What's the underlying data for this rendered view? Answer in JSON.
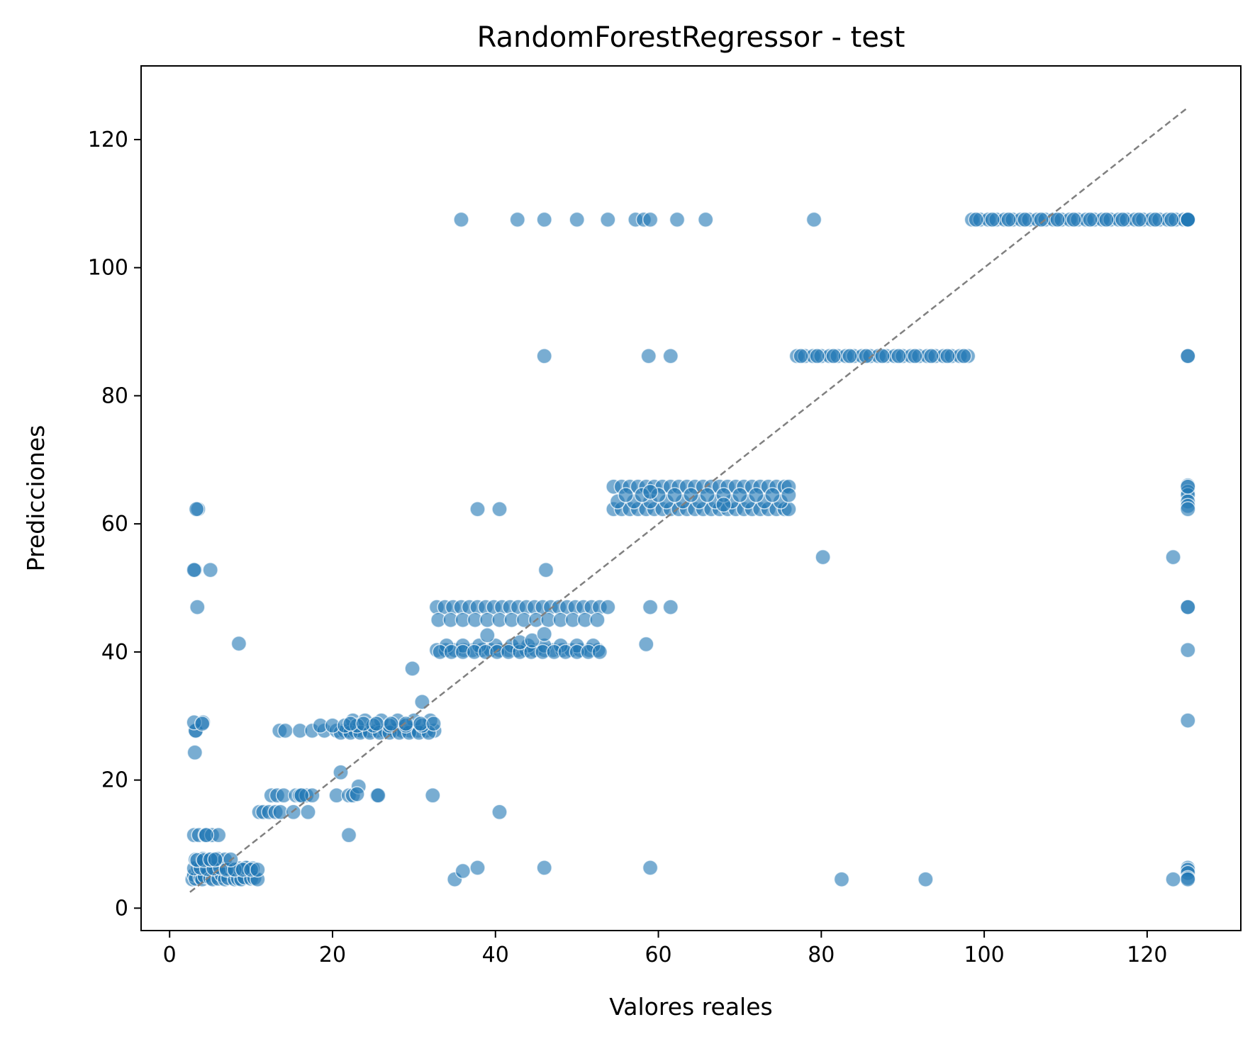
{
  "chart_data": {
    "type": "scatter",
    "title": "RandomForestRegressor - test",
    "xlabel": "Valores reales",
    "ylabel": "Predicciones",
    "xlim": [
      -3.5,
      131.5
    ],
    "ylim": [
      -3.5,
      131.5
    ],
    "xticks": [
      0,
      20,
      40,
      60,
      80,
      100,
      120
    ],
    "yticks": [
      0,
      20,
      40,
      60,
      80,
      100,
      120
    ],
    "grid": false,
    "colors": {
      "points": "#1f77b4",
      "reference_line": "#808080"
    },
    "reference_line": {
      "x": [
        2.5,
        125
      ],
      "y": [
        2.5,
        125
      ],
      "style": "dashed"
    },
    "series": [
      {
        "x": [
          2.8,
          3.0,
          3.2,
          3.5,
          3.8,
          4.0,
          4.3,
          4.6,
          5.0,
          5.3,
          5.7,
          6.0,
          6.4,
          6.8,
          7.2,
          7.6,
          8.0,
          8.4,
          8.8,
          9.2,
          9.6,
          10.0,
          10.4,
          10.8,
          3.0,
          3.8,
          4.6,
          5.4,
          6.2,
          7.0,
          7.8,
          8.6,
          9.4,
          10.2,
          3.2,
          4.1,
          5.0,
          5.9,
          6.8,
          3.0,
          3.6,
          4.4,
          5.2,
          6.0,
          7.0,
          8.0,
          9.0,
          10.0,
          10.8,
          3.4,
          4.2,
          5.0,
          5.6,
          3.1,
          4.5,
          7.5,
          3.2,
          5.0,
          3.1,
          3.5,
          3.4,
          3.2,
          4.1,
          3.0,
          8.5,
          11.0,
          11.5,
          12.2,
          13.0,
          12.5,
          13.2,
          14.0,
          13.6,
          15.5,
          16.0,
          16.8,
          17.5,
          15.2,
          17.0,
          16.2,
          20.5,
          22.0,
          22.5,
          23.2,
          23.0,
          25.5,
          25.6,
          22.0,
          21.0,
          32.3,
          40.5,
          13.5,
          14.2,
          16.0,
          17.5,
          19.0,
          20.5,
          21.5,
          22.0,
          22.8,
          23.5,
          24.5,
          25.5,
          26.5,
          27.5,
          28.5,
          29.5,
          30.5,
          31.5,
          32.5,
          22.5,
          24.0,
          26.0,
          28.0,
          30.0,
          32.0,
          21.0,
          22.2,
          23.4,
          24.6,
          25.8,
          27.0,
          28.2,
          29.4,
          30.6,
          31.8,
          18.5,
          20.0,
          21.5,
          23.0,
          25.0,
          27.0,
          29.0,
          31.0,
          22.2,
          23.8,
          25.4,
          27.2,
          29.0,
          30.8,
          32.4,
          3.0,
          4.0,
          31.0,
          29.8,
          32.8,
          33.8,
          34.8,
          35.8,
          36.8,
          37.8,
          38.8,
          39.8,
          40.8,
          41.8,
          42.8,
          43.8,
          44.8,
          45.8,
          46.8,
          47.8,
          48.8,
          49.8,
          50.8,
          51.8,
          52.8,
          53.8,
          33.0,
          34.5,
          36.0,
          37.5,
          39.0,
          40.5,
          42.0,
          43.5,
          45.0,
          46.5,
          48.0,
          49.5,
          51.0,
          52.5,
          32.8,
          33.9,
          35.0,
          36.1,
          37.2,
          38.3,
          39.4,
          40.5,
          41.6,
          42.7,
          43.8,
          44.9,
          46.0,
          47.1,
          48.2,
          49.3,
          50.4,
          51.5,
          52.6,
          34.0,
          36.0,
          38.0,
          40.0,
          42.0,
          44.0,
          46.0,
          48.0,
          50.0,
          52.0,
          33.2,
          34.6,
          36.0,
          37.4,
          38.8,
          40.2,
          41.6,
          43.0,
          44.4,
          45.8,
          47.2,
          48.6,
          50.0,
          51.4,
          52.8,
          39.0,
          43.0,
          44.5,
          46.0,
          58.5,
          59.0,
          61.5,
          54.5,
          55.5,
          56.5,
          57.5,
          58.5,
          59.5,
          60.5,
          61.5,
          62.5,
          63.5,
          64.5,
          65.5,
          66.5,
          67.5,
          68.5,
          69.5,
          70.5,
          71.5,
          72.5,
          73.5,
          74.5,
          75.5,
          76.0,
          54.5,
          55.5,
          56.5,
          57.5,
          58.5,
          59.5,
          60.5,
          61.5,
          62.5,
          63.5,
          64.5,
          65.5,
          66.5,
          67.5,
          68.5,
          69.5,
          70.5,
          71.5,
          72.5,
          73.5,
          74.5,
          75.5,
          76.0,
          55.0,
          57.0,
          59.0,
          61.0,
          63.0,
          65.0,
          67.0,
          69.0,
          71.0,
          73.0,
          75.0,
          56.0,
          58.0,
          60.0,
          62.0,
          64.0,
          66.0,
          68.0,
          70.0,
          72.0,
          74.0,
          76.0,
          59.0,
          68.0,
          3.3,
          37.8,
          40.5,
          77.0,
          78.0,
          79.0,
          80.0,
          81.0,
          82.0,
          83.0,
          84.0,
          85.0,
          86.0,
          87.0,
          88.0,
          89.0,
          90.0,
          91.0,
          92.0,
          93.0,
          94.0,
          95.0,
          96.0,
          97.0,
          98.0,
          77.5,
          79.5,
          81.5,
          83.5,
          85.5,
          87.5,
          89.5,
          91.5,
          93.5,
          95.5,
          97.5,
          46.0,
          58.8,
          61.5,
          98.5,
          99.5,
          100.5,
          101.5,
          102.5,
          103.5,
          104.5,
          105.5,
          106.5,
          107.5,
          108.5,
          109.5,
          110.5,
          111.5,
          112.5,
          113.5,
          114.5,
          115.5,
          116.5,
          117.5,
          118.5,
          119.5,
          120.5,
          121.5,
          122.5,
          123.5,
          124.5,
          125.0,
          99.0,
          101.0,
          103.0,
          105.0,
          107.0,
          109.0,
          111.0,
          113.0,
          115.0,
          117.0,
          119.0,
          121.0,
          123.0,
          125.0,
          35.8,
          42.7,
          46.0,
          50.0,
          53.8,
          57.2,
          58.2,
          59.0,
          62.3,
          65.8,
          79.1,
          125.0,
          125.0,
          125.0,
          125.0,
          125.0,
          125.0,
          125.0,
          125.0,
          125.0,
          125.0,
          125.0,
          125.0,
          125.0,
          125.0,
          125.0,
          125.0,
          125.0,
          125.0,
          125.0,
          125.0,
          35.0,
          36.0,
          37.8,
          46.0,
          46.2,
          59.0,
          82.5,
          92.8,
          123.2,
          80.2,
          123.2
        ],
        "y": [
          4.5,
          5.2,
          4.6,
          6.3,
          4.8,
          4.5,
          5.0,
          6.3,
          4.7,
          4.5,
          6.0,
          4.6,
          5.2,
          4.5,
          4.7,
          5.8,
          4.5,
          4.6,
          4.5,
          4.8,
          6.2,
          4.6,
          4.7,
          4.5,
          6.2,
          6.3,
          6.1,
          6.2,
          6.3,
          6.2,
          6.1,
          6.2,
          6.3,
          6.2,
          7.6,
          7.7,
          7.6,
          7.7,
          7.6,
          11.4,
          11.4,
          11.4,
          11.4,
          11.4,
          6.0,
          6.0,
          6.0,
          6.0,
          6.0,
          7.5,
          7.5,
          7.6,
          7.6,
          24.3,
          11.4,
          7.6,
          27.7,
          52.8,
          52.8,
          62.3,
          47.0,
          27.7,
          29.0,
          52.8,
          41.3,
          15.0,
          15.0,
          15.0,
          15.0,
          17.6,
          17.6,
          17.6,
          15.0,
          17.6,
          17.6,
          17.6,
          17.6,
          15.0,
          15.0,
          17.6,
          17.6,
          17.6,
          17.6,
          19.0,
          17.8,
          17.6,
          17.6,
          11.4,
          21.2,
          17.6,
          15.0,
          27.7,
          27.7,
          27.7,
          27.7,
          27.7,
          27.7,
          27.7,
          27.7,
          27.7,
          27.7,
          27.7,
          27.7,
          27.7,
          27.7,
          27.7,
          27.7,
          27.7,
          27.7,
          27.7,
          29.3,
          29.3,
          29.3,
          29.3,
          29.3,
          29.3,
          27.4,
          27.4,
          27.4,
          27.4,
          27.4,
          27.4,
          27.4,
          27.4,
          27.4,
          27.4,
          28.5,
          28.5,
          28.5,
          28.5,
          28.5,
          28.5,
          28.5,
          28.5,
          28.8,
          28.8,
          28.8,
          28.8,
          28.8,
          28.8,
          28.8,
          29.0,
          28.8,
          32.2,
          37.4,
          47.0,
          47.0,
          47.0,
          47.0,
          47.0,
          47.0,
          47.0,
          47.0,
          47.0,
          47.0,
          47.0,
          47.0,
          47.0,
          47.0,
          47.0,
          47.0,
          47.0,
          47.0,
          47.0,
          47.0,
          47.0,
          47.0,
          45.0,
          45.0,
          45.0,
          45.0,
          45.0,
          45.0,
          45.0,
          45.0,
          45.0,
          45.0,
          45.0,
          45.0,
          45.0,
          45.0,
          40.3,
          40.3,
          40.3,
          40.3,
          40.3,
          40.3,
          40.3,
          40.3,
          40.3,
          40.3,
          40.3,
          40.3,
          40.3,
          40.3,
          40.3,
          40.3,
          40.3,
          40.3,
          40.3,
          41.0,
          41.0,
          41.0,
          41.0,
          41.0,
          41.0,
          41.0,
          41.0,
          41.0,
          41.0,
          40.0,
          40.0,
          40.0,
          40.0,
          40.0,
          40.0,
          40.0,
          40.0,
          40.0,
          40.0,
          40.0,
          40.0,
          40.0,
          40.0,
          40.0,
          42.6,
          41.5,
          41.8,
          42.8,
          41.2,
          47.0,
          47.0,
          65.8,
          65.8,
          65.8,
          65.8,
          65.8,
          65.8,
          65.8,
          65.8,
          65.8,
          65.8,
          65.8,
          65.8,
          65.8,
          65.8,
          65.8,
          65.8,
          65.8,
          65.8,
          65.8,
          65.8,
          65.8,
          65.8,
          65.8,
          62.3,
          62.3,
          62.3,
          62.3,
          62.3,
          62.3,
          62.3,
          62.3,
          62.3,
          62.3,
          62.3,
          62.3,
          62.3,
          62.3,
          62.3,
          62.3,
          62.3,
          62.3,
          62.3,
          62.3,
          62.3,
          62.3,
          62.3,
          63.5,
          63.5,
          63.5,
          63.5,
          63.5,
          63.5,
          63.5,
          63.5,
          63.5,
          63.5,
          63.5,
          64.5,
          64.5,
          64.5,
          64.5,
          64.5,
          64.5,
          64.5,
          64.5,
          64.5,
          64.5,
          64.5,
          65.0,
          63.0,
          62.3,
          62.3,
          62.3,
          86.2,
          86.2,
          86.2,
          86.2,
          86.2,
          86.2,
          86.2,
          86.2,
          86.2,
          86.2,
          86.2,
          86.2,
          86.2,
          86.2,
          86.2,
          86.2,
          86.2,
          86.2,
          86.2,
          86.2,
          86.2,
          86.2,
          86.2,
          86.2,
          86.2,
          86.2,
          86.2,
          86.2,
          86.2,
          86.2,
          86.2,
          86.2,
          86.2,
          86.2,
          86.2,
          86.2,
          107.5,
          107.5,
          107.5,
          107.5,
          107.5,
          107.5,
          107.5,
          107.5,
          107.5,
          107.5,
          107.5,
          107.5,
          107.5,
          107.5,
          107.5,
          107.5,
          107.5,
          107.5,
          107.5,
          107.5,
          107.5,
          107.5,
          107.5,
          107.5,
          107.5,
          107.5,
          107.5,
          107.5,
          107.5,
          107.5,
          107.5,
          107.5,
          107.5,
          107.5,
          107.5,
          107.5,
          107.5,
          107.5,
          107.5,
          107.5,
          107.5,
          107.5,
          107.5,
          107.5,
          107.5,
          107.5,
          107.5,
          107.5,
          107.5,
          107.5,
          107.5,
          107.5,
          107.5,
          86.2,
          66.0,
          65.0,
          64.5,
          63.5,
          62.8,
          62.3,
          47.0,
          47.0,
          40.3,
          29.3,
          6.3,
          6.0,
          5.5,
          4.7,
          4.5,
          107.5,
          107.5,
          86.2,
          65.8,
          4.5,
          5.8,
          6.3,
          6.3,
          52.8,
          6.3,
          4.5,
          4.5,
          4.5,
          54.8,
          54.8
        ]
      }
    ]
  }
}
